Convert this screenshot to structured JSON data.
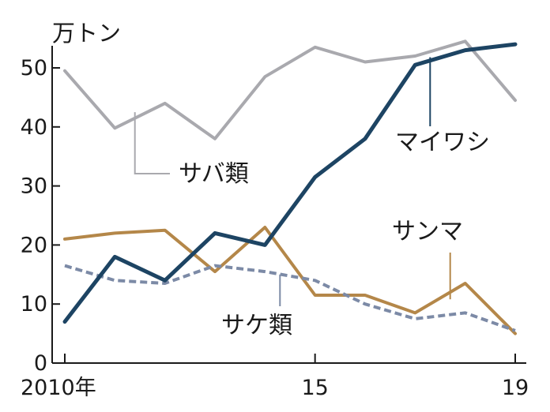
{
  "chart_data": {
    "type": "line",
    "unit_label": "万トン",
    "x": [
      2010,
      2011,
      2012,
      2013,
      2014,
      2015,
      2016,
      2017,
      2018,
      2019
    ],
    "x_tick_labels": [
      {
        "x": 2010,
        "label": "2010年"
      },
      {
        "x": 2015,
        "label": "15"
      },
      {
        "x": 2019,
        "label": "19"
      }
    ],
    "ylim": [
      0,
      57
    ],
    "yticks": [
      0,
      10,
      20,
      30,
      40,
      50
    ],
    "grid": false,
    "legend": "inline labels",
    "series": [
      {
        "name": "サバ類",
        "color": "#a9a9ae",
        "style": "solid",
        "values": [
          49.5,
          39.8,
          44.0,
          38.0,
          48.5,
          53.5,
          51.0,
          52.0,
          54.5,
          44.5
        ]
      },
      {
        "name": "マイワシ",
        "color": "#1d4463",
        "style": "solid",
        "values": [
          7.0,
          18.0,
          14.0,
          22.0,
          20.0,
          31.5,
          38.0,
          50.5,
          53.0,
          54.0
        ]
      },
      {
        "name": "サンマ",
        "color": "#b48749",
        "style": "solid",
        "values": [
          21.0,
          22.0,
          22.5,
          15.5,
          23.0,
          11.5,
          11.5,
          8.5,
          13.5,
          5.0
        ]
      },
      {
        "name": "サケ類",
        "color": "#7c8aa6",
        "style": "dashed",
        "values": [
          16.5,
          14.0,
          13.5,
          16.5,
          15.5,
          14.0,
          10.0,
          7.5,
          8.5,
          5.5
        ]
      }
    ]
  }
}
